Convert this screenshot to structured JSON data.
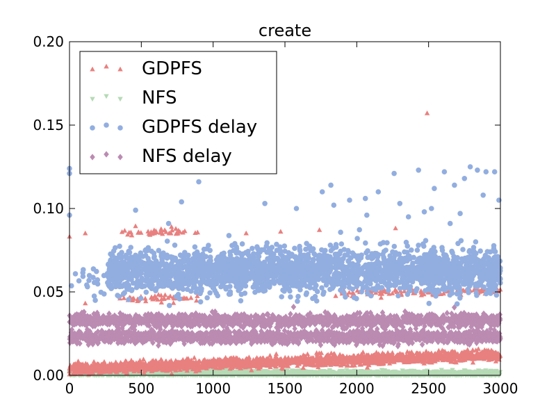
{
  "chart_data": {
    "type": "scatter",
    "title": "create",
    "xlabel": "",
    "ylabel": "",
    "xlim": [
      0,
      3000
    ],
    "ylim": [
      0.0,
      0.2
    ],
    "xticks": [
      "0",
      "500",
      "1000",
      "1500",
      "2000",
      "2500",
      "3000"
    ],
    "yticks": [
      "0.00",
      "0.05",
      "0.10",
      "0.15",
      "0.20"
    ],
    "grid": false,
    "legend_position": "top-left",
    "n_points": 3000,
    "series": [
      {
        "name": "GDPFS",
        "marker": "triangle-up",
        "color": "#e8807f",
        "bands": [
          {
            "x_start": 0,
            "x_end": 3000,
            "y_start": 0.004,
            "y_end": 0.012,
            "spread": 0.0015,
            "fraction": 0.75
          },
          {
            "x_start": 350,
            "x_end": 900,
            "y_start": 0.086,
            "y_end": 0.086,
            "spread": 0.0012,
            "fraction": 0.08
          },
          {
            "x_start": 350,
            "x_end": 900,
            "y_start": 0.046,
            "y_end": 0.046,
            "spread": 0.0012,
            "fraction": 0.08
          },
          {
            "x_start": 1850,
            "x_end": 3000,
            "y_start": 0.049,
            "y_end": 0.051,
            "spread": 0.0012,
            "fraction": 0.09
          }
        ],
        "outliers": [
          {
            "x": 2490,
            "y": 0.157
          },
          {
            "x": 0,
            "y": 0.083
          },
          {
            "x": 110,
            "y": 0.085
          },
          {
            "x": 1230,
            "y": 0.085
          },
          {
            "x": 1470,
            "y": 0.086
          },
          {
            "x": 1740,
            "y": 0.087
          },
          {
            "x": 2270,
            "y": 0.088
          },
          {
            "x": 110,
            "y": 0.043
          }
        ]
      },
      {
        "name": "NFS",
        "marker": "triangle-down",
        "color": "#b5dab5",
        "bands": [
          {
            "x_start": 0,
            "x_end": 3000,
            "y_start": 0.001,
            "y_end": 0.001,
            "spread": 0.0008,
            "fraction": 1.0
          }
        ],
        "outliers": []
      },
      {
        "name": "GDPFS delay",
        "marker": "circle",
        "color": "#92aee0",
        "bands": [
          {
            "x_start": 0,
            "x_end": 270,
            "y_start": 0.055,
            "y_end": 0.058,
            "spread": 0.004,
            "fraction": 0.09
          },
          {
            "x_start": 270,
            "x_end": 3000,
            "y_start": 0.062,
            "y_end": 0.063,
            "spread": 0.0065,
            "fraction": 0.91
          }
        ],
        "outliers": [
          {
            "x": 0,
            "y": 0.124
          },
          {
            "x": 0,
            "y": 0.121
          },
          {
            "x": 0,
            "y": 0.096
          },
          {
            "x": 460,
            "y": 0.099
          },
          {
            "x": 900,
            "y": 0.116
          },
          {
            "x": 690,
            "y": 0.091
          },
          {
            "x": 780,
            "y": 0.104
          },
          {
            "x": 1360,
            "y": 0.103
          },
          {
            "x": 1580,
            "y": 0.1
          },
          {
            "x": 1820,
            "y": 0.114
          },
          {
            "x": 1760,
            "y": 0.11
          },
          {
            "x": 1840,
            "y": 0.102
          },
          {
            "x": 1950,
            "y": 0.105
          },
          {
            "x": 2060,
            "y": 0.106
          },
          {
            "x": 2150,
            "y": 0.11
          },
          {
            "x": 2260,
            "y": 0.121
          },
          {
            "x": 2300,
            "y": 0.103
          },
          {
            "x": 2430,
            "y": 0.123
          },
          {
            "x": 2540,
            "y": 0.112
          },
          {
            "x": 2610,
            "y": 0.122
          },
          {
            "x": 2680,
            "y": 0.114
          },
          {
            "x": 2750,
            "y": 0.118
          },
          {
            "x": 2790,
            "y": 0.125
          },
          {
            "x": 2840,
            "y": 0.123
          },
          {
            "x": 2900,
            "y": 0.122
          },
          {
            "x": 2960,
            "y": 0.122
          },
          {
            "x": 2520,
            "y": 0.1
          },
          {
            "x": 2990,
            "y": 0.105
          },
          {
            "x": 2880,
            "y": 0.108
          },
          {
            "x": 2650,
            "y": 0.091
          },
          {
            "x": 2720,
            "y": 0.097
          },
          {
            "x": 2070,
            "y": 0.096
          },
          {
            "x": 2360,
            "y": 0.095
          },
          {
            "x": 2470,
            "y": 0.098
          }
        ]
      },
      {
        "name": "NFS delay",
        "marker": "diamond",
        "color": "#bb8bb2",
        "bands": [
          {
            "x_start": 0,
            "x_end": 3000,
            "y_start": 0.033,
            "y_end": 0.033,
            "spread": 0.0018,
            "fraction": 0.5
          },
          {
            "x_start": 0,
            "x_end": 3000,
            "y_start": 0.023,
            "y_end": 0.023,
            "spread": 0.0018,
            "fraction": 0.5
          }
        ],
        "outliers": [
          {
            "x": 1560,
            "y": 0.041
          }
        ]
      }
    ]
  }
}
